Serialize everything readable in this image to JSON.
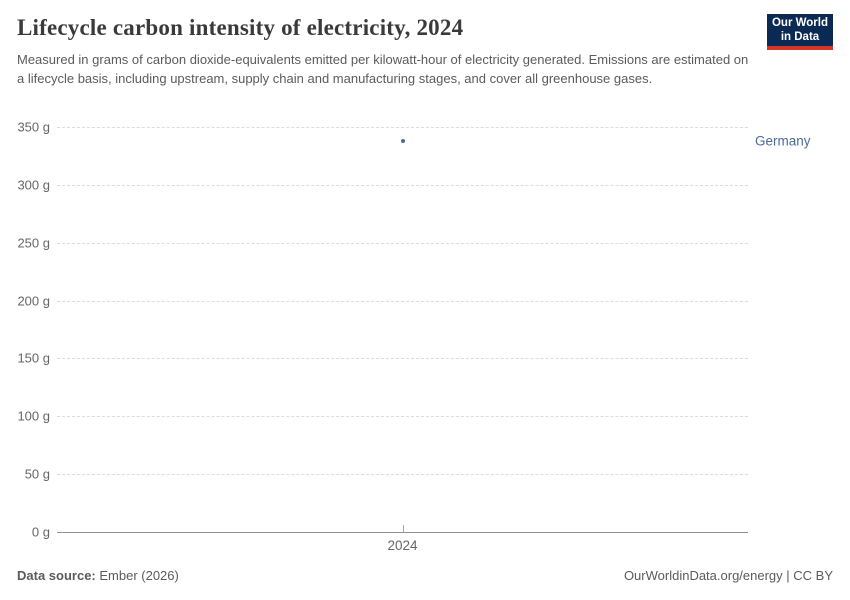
{
  "header": {
    "title": "Lifecycle carbon intensity of electricity, 2024",
    "subtitle": "Measured in grams of carbon dioxide-equivalents emitted per kilowatt-hour of electricity generated. Emissions are estimated on a lifecycle basis, including upstream, supply chain and manufacturing stages, and cover all greenhouse gases.",
    "logo": {
      "line1": "Our World",
      "line2": "in Data"
    }
  },
  "chart_data": {
    "type": "scatter",
    "title": "Lifecycle carbon intensity of electricity, 2024",
    "unit": "grams of CO2-equivalents per kilowatt-hour",
    "series": [
      {
        "name": "Germany",
        "color": "#4c6a9c",
        "points": [
          {
            "x": 2024,
            "y": 338
          }
        ]
      }
    ],
    "x_ticks": [
      "2024"
    ],
    "y_ticks": [
      0,
      50,
      100,
      150,
      200,
      250,
      300,
      350
    ],
    "y_tick_suffix": " g",
    "ylim": [
      0,
      350
    ],
    "grid": "horizontal-dashed",
    "legend_position": "right"
  },
  "footer": {
    "source_label": "Data source:",
    "source_value": " Ember (2026)",
    "credit": "OurWorldinData.org/energy | CC BY"
  },
  "colors": {
    "series_blue": "#4c6a9c",
    "logo_navy": "#0a2a54",
    "logo_red": "#d8352a",
    "gridline": "#dcdcdc",
    "axis": "#929292",
    "tick_text": "#666666",
    "body_text": "#5b5b5b",
    "title_text": "#3a3a3a"
  }
}
